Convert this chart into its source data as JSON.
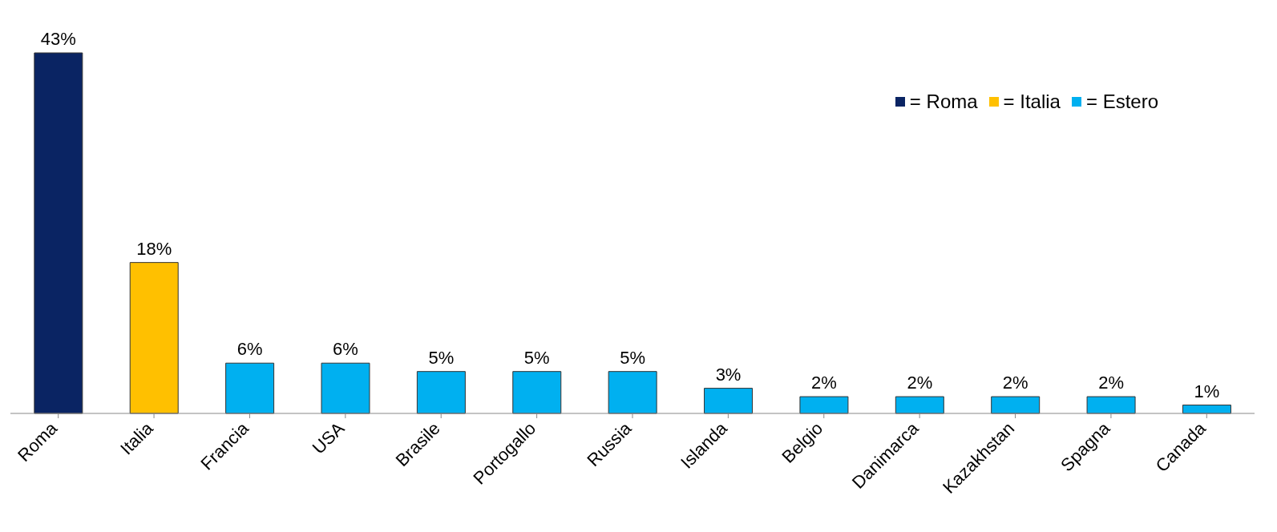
{
  "chart_data": {
    "type": "bar",
    "stacked": true,
    "categories": [
      "Roma",
      "Italia",
      "Francia",
      "USA",
      "Brasile",
      "Portogallo",
      "Russia",
      "Islanda",
      "Belgio",
      "Danimarca",
      "Kazakhstan",
      "Spagna",
      "Canada"
    ],
    "series": [
      {
        "name": "= Roma",
        "color": "#0a2463",
        "values": [
          43,
          null,
          null,
          null,
          null,
          null,
          null,
          null,
          null,
          null,
          null,
          null,
          null
        ],
        "value_labels": [
          "43%",
          null,
          null,
          null,
          null,
          null,
          null,
          null,
          null,
          null,
          null,
          null,
          null
        ]
      },
      {
        "name": "= Italia",
        "color": "#ffc000",
        "values": [
          null,
          18,
          null,
          null,
          null,
          null,
          null,
          null,
          null,
          null,
          null,
          null,
          null
        ],
        "value_labels": [
          null,
          "18%",
          null,
          null,
          null,
          null,
          null,
          null,
          null,
          null,
          null,
          null,
          null
        ]
      },
      {
        "name": "= Estero",
        "color": "#00b0f0",
        "values": [
          null,
          null,
          6,
          6,
          5,
          5,
          5,
          3,
          2,
          2,
          2,
          2,
          1
        ],
        "value_labels": [
          null,
          null,
          "6%",
          "6%",
          "5%",
          "5%",
          "5%",
          "3%",
          "2%",
          "2%",
          "2%",
          "2%",
          "1%"
        ]
      }
    ],
    "tick_labels": "x",
    "grid": false,
    "legend": "top right"
  }
}
